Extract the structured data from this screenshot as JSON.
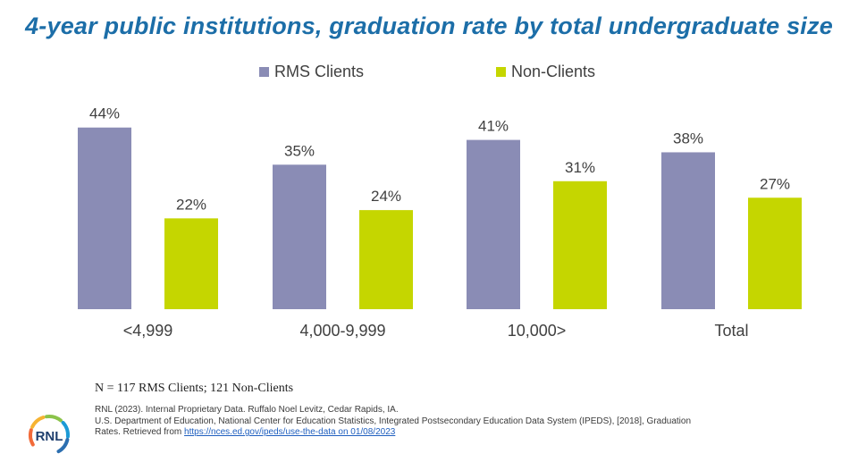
{
  "title": "4-year public institutions, graduation rate by total undergraduate size",
  "chart_data": {
    "type": "bar",
    "categories": [
      "<4,999",
      "4,000-9,999",
      "10,000>",
      "Total"
    ],
    "series": [
      {
        "name": "RMS Clients",
        "values": [
          44,
          35,
          41,
          38
        ],
        "labels": [
          "44%",
          "35%",
          "41%",
          "38%"
        ],
        "color": "#8a8cb5"
      },
      {
        "name": "Non-Clients",
        "values": [
          22,
          24,
          31,
          27
        ],
        "labels": [
          "22%",
          "24%",
          "31%",
          "27%"
        ],
        "color": "#c5d600"
      }
    ],
    "ylim": [
      0,
      50
    ],
    "xlabel": "",
    "ylabel": "",
    "grid": false,
    "legend_position": "top-center"
  },
  "note": "N = 117 RMS Clients; 121 Non-Clients",
  "sources": {
    "line1": "RNL (2023). Internal Proprietary Data. Ruffalo Noel Levitz, Cedar Rapids, IA.",
    "line2": "U.S. Department of Education, National Center for Education Statistics, Integrated Postsecondary Education Data System (IPEDS), [2018], Graduation",
    "line3_prefix": "Rates. Retrieved from",
    "link_text": "https://nces.ed.gov/ipeds/use-the-data on 01/08/2023"
  },
  "logo": {
    "text": "RNL",
    "colors": [
      "#f26b3a",
      "#f6b332",
      "#8bc34a",
      "#1c9ad6",
      "#2c6fb0"
    ]
  }
}
